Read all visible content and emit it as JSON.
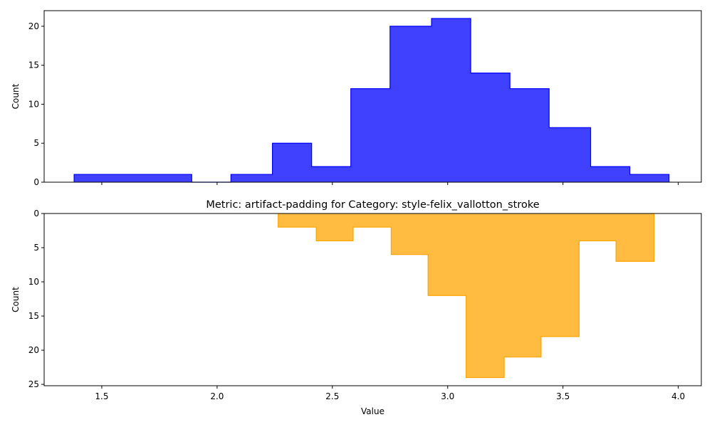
{
  "chart_data": [
    {
      "type": "histogram",
      "orientation": "up",
      "title": "",
      "xlabel": "",
      "ylabel": "Count",
      "xlim": [
        1.25,
        4.1
      ],
      "ylim": [
        0,
        22
      ],
      "yticks": [
        0,
        5,
        10,
        15,
        20
      ],
      "grid": false,
      "color": "#0000ff",
      "fill_opacity": 0.75,
      "bins": [
        {
          "x0": 1.38,
          "x1": 1.55,
          "count": 1
        },
        {
          "x0": 1.55,
          "x1": 1.72,
          "count": 1
        },
        {
          "x0": 1.72,
          "x1": 1.89,
          "count": 1
        },
        {
          "x0": 1.89,
          "x1": 2.06,
          "count": 0
        },
        {
          "x0": 2.06,
          "x1": 2.24,
          "count": 1
        },
        {
          "x0": 2.24,
          "x1": 2.41,
          "count": 5
        },
        {
          "x0": 2.41,
          "x1": 2.58,
          "count": 2
        },
        {
          "x0": 2.58,
          "x1": 2.75,
          "count": 12
        },
        {
          "x0": 2.75,
          "x1": 2.93,
          "count": 20
        },
        {
          "x0": 2.93,
          "x1": 3.1,
          "count": 21
        },
        {
          "x0": 3.1,
          "x1": 3.27,
          "count": 14
        },
        {
          "x0": 3.27,
          "x1": 3.44,
          "count": 12
        },
        {
          "x0": 3.44,
          "x1": 3.62,
          "count": 7
        },
        {
          "x0": 3.62,
          "x1": 3.79,
          "count": 2
        },
        {
          "x0": 3.79,
          "x1": 3.96,
          "count": 1
        }
      ]
    },
    {
      "type": "histogram",
      "orientation": "down",
      "title": "Metric: artifact-padding for Category: style-felix_vallotton_stroke",
      "xlabel": "Value",
      "ylabel": "Count",
      "xlim": [
        1.25,
        4.1
      ],
      "xticks": [
        1.5,
        2.0,
        2.5,
        3.0,
        3.5,
        4.0
      ],
      "ylim": [
        0,
        25.2
      ],
      "y_inverted": true,
      "yticks": [
        0,
        5,
        10,
        15,
        20,
        25
      ],
      "grid": false,
      "color": "#ffa500",
      "fill_opacity": 0.75,
      "bins": [
        {
          "x0": 2.265,
          "x1": 2.43,
          "count": 2
        },
        {
          "x0": 2.43,
          "x1": 2.59,
          "count": 4
        },
        {
          "x0": 2.59,
          "x1": 2.755,
          "count": 2
        },
        {
          "x0": 2.755,
          "x1": 2.915,
          "count": 6
        },
        {
          "x0": 2.915,
          "x1": 3.08,
          "count": 12
        },
        {
          "x0": 3.08,
          "x1": 3.245,
          "count": 24
        },
        {
          "x0": 3.245,
          "x1": 3.405,
          "count": 21
        },
        {
          "x0": 3.405,
          "x1": 3.57,
          "count": 18
        },
        {
          "x0": 3.57,
          "x1": 3.73,
          "count": 4
        },
        {
          "x0": 3.73,
          "x1": 3.895,
          "count": 7
        }
      ]
    }
  ]
}
